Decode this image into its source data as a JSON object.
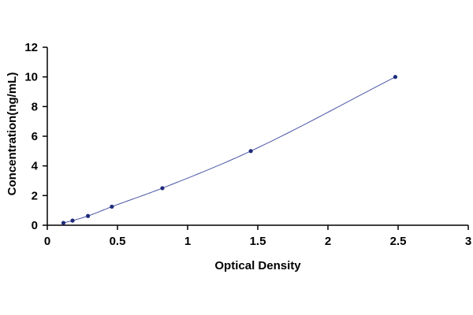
{
  "chart_data": {
    "type": "scatter",
    "title": "",
    "xlabel": "Optical Density",
    "ylabel": "Concentration(ng/mL)",
    "xlim": [
      0,
      3
    ],
    "ylim": [
      0,
      12
    ],
    "xticks": [
      "0",
      "0.5",
      "1",
      "1.5",
      "2",
      "2.5",
      "3"
    ],
    "yticks": [
      "0",
      "2",
      "4",
      "6",
      "8",
      "10",
      "12"
    ],
    "grid": false,
    "legend": "none",
    "series": [
      {
        "x": [
          0.115,
          0.18,
          0.29,
          0.46,
          0.82,
          1.45,
          2.48
        ],
        "y": [
          0.156,
          0.312,
          0.625,
          1.25,
          2.5,
          5,
          10
        ]
      }
    ],
    "fit_curve": true,
    "colors": {
      "point": "#1f2a7a",
      "curve": "#4a56a6",
      "axis": "#000000"
    }
  }
}
